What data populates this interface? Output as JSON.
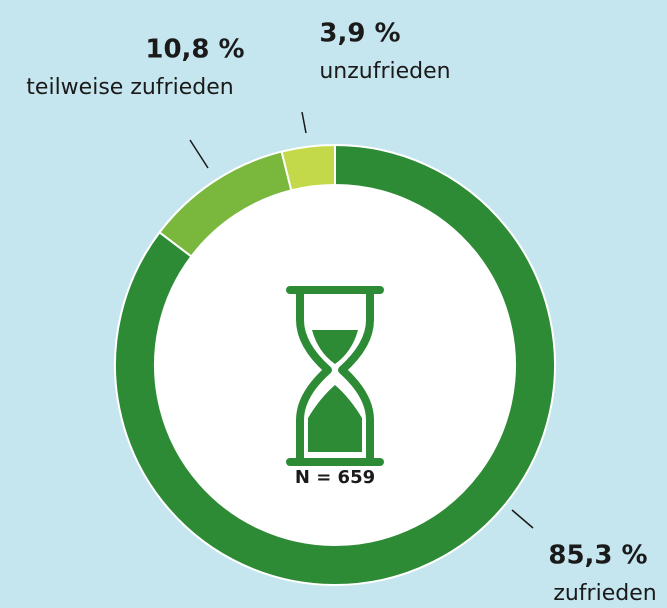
{
  "chart_data": {
    "type": "donut",
    "categories": [
      "zufrieden",
      "teilweise zufrieden",
      "unzufrieden"
    ],
    "values": [
      85.3,
      10.8,
      3.9
    ],
    "value_labels": [
      "85,3 %",
      "10,8 %",
      "3,9 %"
    ],
    "colors": [
      "#2e8b35",
      "#7ab83d",
      "#c3d94a"
    ],
    "center_label": "N = 659"
  }
}
